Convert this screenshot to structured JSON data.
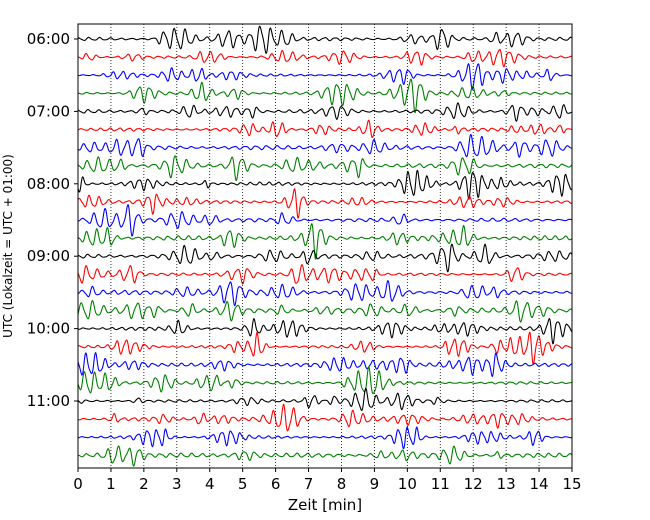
{
  "chart_data": {
    "type": "line",
    "xlabel": "Zeit  [min]",
    "ylabel": "UTC (Lokalzeit = UTC + 01:00)",
    "xlim": [
      0,
      15
    ],
    "x_ticks": [
      0,
      1,
      2,
      3,
      4,
      5,
      6,
      7,
      8,
      9,
      10,
      11,
      12,
      13,
      14,
      15
    ],
    "y_tick_labels": [
      "06:00",
      "07:00",
      "08:00",
      "09:00",
      "10:00",
      "11:00"
    ],
    "traces_per_hour": 4,
    "trace_minutes": 15,
    "trace_colors": [
      "#000000",
      "#ff0000",
      "#0000ff",
      "#008000"
    ],
    "traces": [
      {
        "start": "06:00"
      },
      {
        "start": "06:15"
      },
      {
        "start": "06:30"
      },
      {
        "start": "06:45"
      },
      {
        "start": "07:00"
      },
      {
        "start": "07:15"
      },
      {
        "start": "07:30"
      },
      {
        "start": "07:45"
      },
      {
        "start": "08:00"
      },
      {
        "start": "08:15"
      },
      {
        "start": "08:30"
      },
      {
        "start": "08:45"
      },
      {
        "start": "09:00"
      },
      {
        "start": "09:15"
      },
      {
        "start": "09:30"
      },
      {
        "start": "09:45"
      },
      {
        "start": "10:00"
      },
      {
        "start": "10:15"
      },
      {
        "start": "10:30"
      },
      {
        "start": "10:45"
      },
      {
        "start": "11:00"
      },
      {
        "start": "11:15"
      },
      {
        "start": "11:30"
      },
      {
        "start": "11:45"
      }
    ],
    "vertical_grid": "dotted"
  }
}
